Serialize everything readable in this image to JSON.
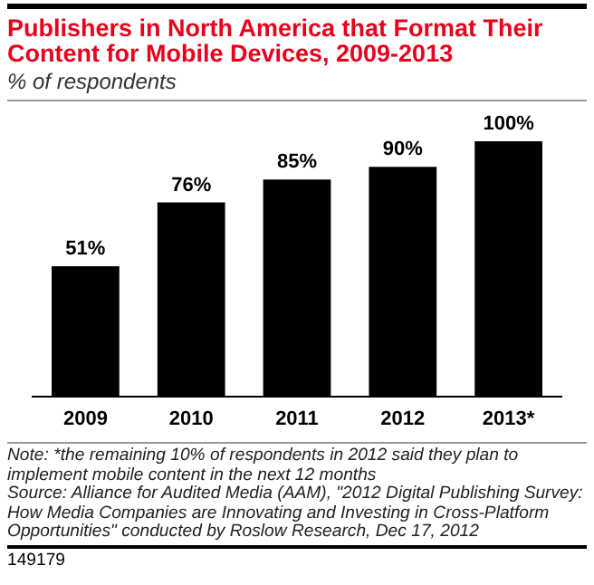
{
  "chart_data": {
    "type": "bar",
    "title": "Publishers in North America that Format Their Content for Mobile Devices, 2009-2013",
    "subtitle": "% of respondents",
    "categories": [
      "2009",
      "2010",
      "2011",
      "2012",
      "2013*"
    ],
    "values": [
      51,
      76,
      85,
      90,
      100
    ],
    "value_labels": [
      "51%",
      "76%",
      "85%",
      "90%",
      "100%"
    ],
    "color": "#000000",
    "grid": false,
    "legend": false,
    "annotations": [
      "Note: *the remaining 10% of respondents in 2012 said they plan to implement mobile content in the next 12 months",
      "Source: Alliance for Audited Media (AAM), \"2012 Digital Publishing Survey: How Media Companies are Innovating and Investing in Cross-Platform Opportunities\" conducted by Roslow Research, Dec 17, 2012",
      "149179"
    ]
  }
}
